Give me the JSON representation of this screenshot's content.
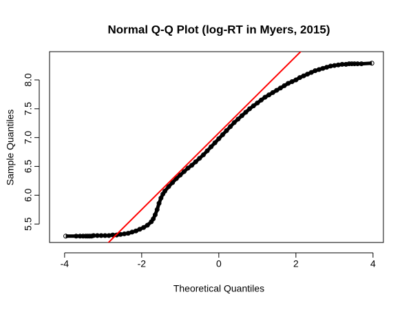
{
  "chart_data": {
    "type": "scatter",
    "title": "Normal Q-Q Plot (log-RT in Myers, 2015)",
    "x_label": "Theoretical Quantiles",
    "y_label": "Sample Quantiles",
    "color": "#000000",
    "x": [
      -3.97,
      -3.7,
      -3.6,
      -3.52,
      -3.45,
      -3.4,
      -3.35,
      -3.3,
      -3.25,
      -3.15,
      -3.05,
      -2.95,
      -2.85,
      -2.75,
      -2.65,
      -2.55,
      -2.45,
      -2.35,
      -2.25,
      -2.15,
      -2.05,
      -1.95,
      -1.85,
      -1.75,
      -1.7,
      -1.65,
      -1.6,
      -1.55,
      -1.5,
      -1.45,
      -1.4,
      -1.3,
      -1.2,
      -1.1,
      -1.0,
      -0.9,
      -0.8,
      -0.7,
      -0.6,
      -0.5,
      -0.4,
      -0.3,
      -0.2,
      -0.1,
      0,
      0.1,
      0.2,
      0.3,
      0.4,
      0.5,
      0.6,
      0.7,
      0.8,
      0.9,
      1.0,
      1.1,
      1.2,
      1.3,
      1.4,
      1.5,
      1.6,
      1.7,
      1.8,
      1.9,
      2.0,
      2.1,
      2.2,
      2.3,
      2.4,
      2.5,
      2.6,
      2.7,
      2.8,
      2.9,
      3.0,
      3.1,
      3.2,
      3.3,
      3.38,
      3.45,
      3.52,
      3.6,
      3.7,
      3.97
    ],
    "values": [
      5.29,
      5.29,
      5.29,
      5.29,
      5.29,
      5.29,
      5.29,
      5.29,
      5.3,
      5.3,
      5.3,
      5.3,
      5.3,
      5.31,
      5.31,
      5.32,
      5.33,
      5.34,
      5.36,
      5.38,
      5.41,
      5.44,
      5.48,
      5.54,
      5.59,
      5.66,
      5.75,
      5.86,
      5.95,
      6.02,
      6.07,
      6.15,
      6.22,
      6.29,
      6.35,
      6.41,
      6.47,
      6.52,
      6.58,
      6.64,
      6.7,
      6.77,
      6.84,
      6.91,
      6.98,
      7.05,
      7.12,
      7.19,
      7.26,
      7.32,
      7.38,
      7.44,
      7.5,
      7.55,
      7.6,
      7.65,
      7.7,
      7.74,
      7.78,
      7.82,
      7.86,
      7.9,
      7.94,
      7.97,
      8.0,
      8.04,
      8.07,
      8.1,
      8.13,
      8.16,
      8.18,
      8.2,
      8.22,
      8.24,
      8.25,
      8.26,
      8.27,
      8.27,
      8.28,
      8.28,
      8.28,
      8.28,
      8.28,
      8.29
    ],
    "reference_line": {
      "color": "#ff0000",
      "intercept": 7.08,
      "slope": 0.664
    },
    "xlim": [
      -4.39,
      4.27
    ],
    "xticks": [
      -4,
      -2,
      0,
      2,
      4
    ],
    "ylim": [
      5.18,
      8.49
    ],
    "yticks": [
      5.5,
      {
        "value": 6,
        "label": "6.0"
      },
      6.5,
      {
        "value": 7,
        "label": "7.0"
      },
      7.5,
      {
        "value": 8,
        "label": "8.0"
      }
    ]
  }
}
